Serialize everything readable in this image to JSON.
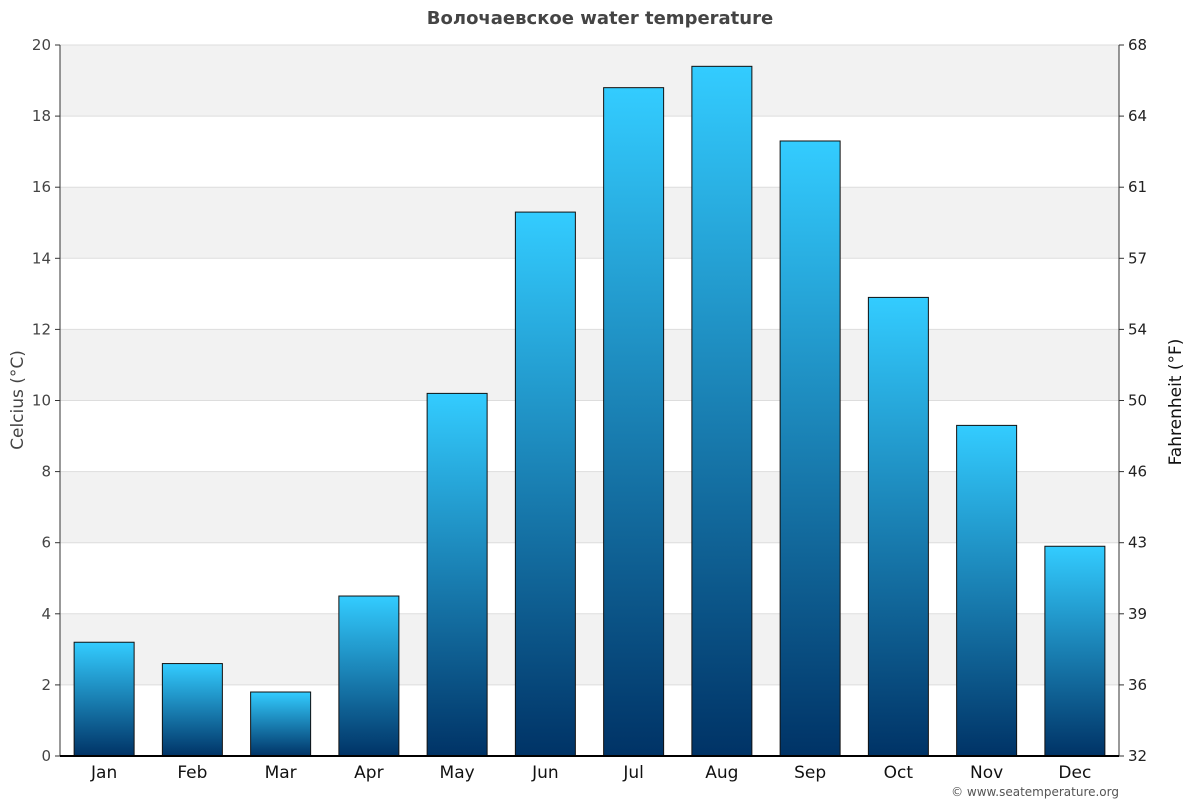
{
  "chart_data": {
    "type": "bar",
    "title": "Волочаевское water temperature",
    "ylabel": "Celcius (°C)",
    "ylabel_right": "Fahrenheit (°F)",
    "ylim": [
      0,
      20
    ],
    "y_ticks": [
      "0",
      "2",
      "4",
      "6",
      "8",
      "10",
      "12",
      "14",
      "16",
      "18",
      "20"
    ],
    "y_ticks_right": [
      "32",
      "36",
      "39",
      "43",
      "46",
      "50",
      "54",
      "57",
      "61",
      "64",
      "68"
    ],
    "categories": [
      "Jan",
      "Feb",
      "Mar",
      "Apr",
      "May",
      "Jun",
      "Jul",
      "Aug",
      "Sep",
      "Oct",
      "Nov",
      "Dec"
    ],
    "values": [
      3.2,
      2.6,
      1.8,
      4.5,
      10.2,
      15.3,
      18.8,
      19.4,
      17.3,
      12.9,
      9.3,
      5.9
    ],
    "grid": true,
    "colors": {
      "bar_top": "#33ccff",
      "bar_bottom": "#003366",
      "band": "#f2f2f2"
    }
  },
  "credit": "© www.seatemperature.org"
}
